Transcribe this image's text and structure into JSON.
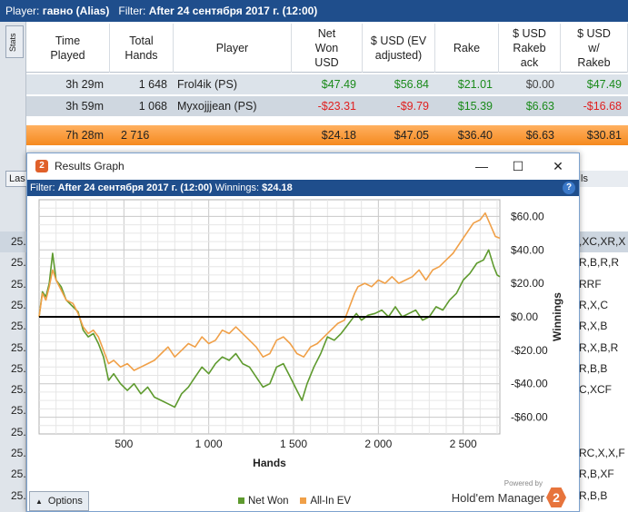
{
  "report": {
    "player_label": "Player:",
    "player_name": "гавно (Alias)",
    "filter_label": "Filter:",
    "filter_value": "After 24 сентября 2017 г. (12:00)",
    "stats_tab": "Stats",
    "las_tab": "Las",
    "right_header": "ls",
    "columns": [
      "Time\nPlayed",
      "Total\nHands",
      "Player",
      "Net\nWon\nUSD",
      "$ USD (EV\nadjusted)",
      "Rake",
      "$ USD\nRakeb\nack",
      "$ USD\nw/\nRakeb"
    ],
    "rows": [
      {
        "time": "3h 29m",
        "hands": "1 648",
        "player": "Frol4ik (PS)",
        "net": "$47.49",
        "ev": "$56.84",
        "rake": "$21.01",
        "rakeback": "$0.00",
        "with_rb": "$47.49",
        "net_color": "#1a8a1a",
        "ev_color": "#1a8a1a",
        "wrb_color": "#1a8a1a"
      },
      {
        "time": "3h 59m",
        "hands": "1 068",
        "player": "Myxojjjean (PS)",
        "net": "-$23.31",
        "ev": "-$9.79",
        "rake": "$15.39",
        "rakeback": "$6.63",
        "with_rb": "-$16.68",
        "net_color": "#e02020",
        "ev_color": "#e02020",
        "wrb_color": "#e02020"
      }
    ],
    "total": {
      "time": "7h 28m",
      "hands": "2 716",
      "net": "$24.18",
      "ev": "$47.05",
      "rake": "$36.40",
      "rakeback": "$6.63",
      "with_rb": "$30.81"
    },
    "side_rows": [
      "25.",
      "25.",
      "25.",
      "25.",
      "25.",
      "25.",
      "25.",
      "25.",
      "25.",
      "25.",
      "25.",
      "25.",
      "25."
    ],
    "right_rows": [
      ",XC,XR,X",
      "R,B,R,R",
      "RRF",
      "R,X,C",
      "R,X,B",
      "R,X,B,R",
      "R,B,B",
      "C,XCF",
      "",
      "",
      "RC,X,X,F",
      "R,B,XF",
      "R,B,B"
    ]
  },
  "graph_window": {
    "title": "Results Graph",
    "filter_label": "Filter:",
    "filter_value": "After 24 сентября 2017 г. (12:00)",
    "winnings_label": "Winnings:",
    "winnings_value": "$24.18",
    "options_label": "Options",
    "powered_by": "Powered by",
    "brand": "Hold'em Manager",
    "logo_glyph": "2"
  },
  "chart_data": {
    "type": "line",
    "xlabel": "Hands",
    "ylabel": "Winnings",
    "xlim": [
      0,
      2716
    ],
    "ylim": [
      -70,
      70
    ],
    "x_ticks": [
      500,
      1000,
      1500,
      2000,
      2500
    ],
    "x_tick_labels": [
      "500",
      "1 000",
      "1 500",
      "2 000",
      "2 500"
    ],
    "y_ticks": [
      60,
      40,
      20,
      0,
      -20,
      -40,
      -60
    ],
    "y_tick_labels": [
      "$60.00",
      "$40.00",
      "$20.00",
      "$0.00",
      "-$20.00",
      "-$40.00",
      "-$60.00"
    ],
    "grid": true,
    "legend_position": "bottom",
    "series": [
      {
        "name": "Net Won",
        "color": "#5e9a2e",
        "points": [
          [
            0,
            0
          ],
          [
            20,
            15
          ],
          [
            40,
            12
          ],
          [
            60,
            20
          ],
          [
            80,
            38
          ],
          [
            100,
            22
          ],
          [
            130,
            18
          ],
          [
            160,
            10
          ],
          [
            200,
            6
          ],
          [
            230,
            3
          ],
          [
            260,
            -8
          ],
          [
            290,
            -12
          ],
          [
            320,
            -10
          ],
          [
            350,
            -16
          ],
          [
            380,
            -24
          ],
          [
            410,
            -38
          ],
          [
            440,
            -34
          ],
          [
            480,
            -40
          ],
          [
            520,
            -44
          ],
          [
            560,
            -40
          ],
          [
            600,
            -46
          ],
          [
            640,
            -42
          ],
          [
            680,
            -48
          ],
          [
            720,
            -50
          ],
          [
            760,
            -52
          ],
          [
            800,
            -54
          ],
          [
            840,
            -46
          ],
          [
            880,
            -42
          ],
          [
            920,
            -36
          ],
          [
            960,
            -30
          ],
          [
            1000,
            -34
          ],
          [
            1040,
            -28
          ],
          [
            1080,
            -24
          ],
          [
            1120,
            -26
          ],
          [
            1160,
            -22
          ],
          [
            1200,
            -28
          ],
          [
            1240,
            -30
          ],
          [
            1280,
            -36
          ],
          [
            1320,
            -42
          ],
          [
            1360,
            -40
          ],
          [
            1400,
            -30
          ],
          [
            1440,
            -28
          ],
          [
            1480,
            -36
          ],
          [
            1520,
            -44
          ],
          [
            1550,
            -50
          ],
          [
            1580,
            -40
          ],
          [
            1620,
            -30
          ],
          [
            1660,
            -22
          ],
          [
            1700,
            -12
          ],
          [
            1740,
            -14
          ],
          [
            1780,
            -10
          ],
          [
            1810,
            -6
          ],
          [
            1840,
            -2
          ],
          [
            1870,
            2
          ],
          [
            1900,
            -2
          ],
          [
            1940,
            1
          ],
          [
            1980,
            2
          ],
          [
            2020,
            4
          ],
          [
            2060,
            0
          ],
          [
            2100,
            6
          ],
          [
            2140,
            0
          ],
          [
            2180,
            2
          ],
          [
            2220,
            4
          ],
          [
            2260,
            -2
          ],
          [
            2300,
            0
          ],
          [
            2340,
            6
          ],
          [
            2380,
            4
          ],
          [
            2420,
            10
          ],
          [
            2460,
            14
          ],
          [
            2500,
            22
          ],
          [
            2540,
            26
          ],
          [
            2580,
            32
          ],
          [
            2620,
            34
          ],
          [
            2650,
            40
          ],
          [
            2680,
            30
          ],
          [
            2700,
            25
          ],
          [
            2716,
            24
          ]
        ]
      },
      {
        "name": "All-In EV",
        "color": "#f0a048",
        "points": [
          [
            0,
            0
          ],
          [
            20,
            14
          ],
          [
            40,
            10
          ],
          [
            60,
            18
          ],
          [
            80,
            28
          ],
          [
            100,
            22
          ],
          [
            130,
            16
          ],
          [
            160,
            10
          ],
          [
            200,
            8
          ],
          [
            230,
            2
          ],
          [
            260,
            -6
          ],
          [
            290,
            -10
          ],
          [
            320,
            -8
          ],
          [
            350,
            -12
          ],
          [
            380,
            -20
          ],
          [
            410,
            -28
          ],
          [
            440,
            -26
          ],
          [
            480,
            -30
          ],
          [
            520,
            -28
          ],
          [
            560,
            -32
          ],
          [
            600,
            -30
          ],
          [
            640,
            -28
          ],
          [
            680,
            -26
          ],
          [
            720,
            -22
          ],
          [
            760,
            -18
          ],
          [
            800,
            -24
          ],
          [
            840,
            -20
          ],
          [
            880,
            -16
          ],
          [
            920,
            -18
          ],
          [
            960,
            -12
          ],
          [
            1000,
            -16
          ],
          [
            1040,
            -14
          ],
          [
            1080,
            -8
          ],
          [
            1120,
            -10
          ],
          [
            1160,
            -6
          ],
          [
            1200,
            -10
          ],
          [
            1240,
            -14
          ],
          [
            1280,
            -18
          ],
          [
            1320,
            -24
          ],
          [
            1360,
            -22
          ],
          [
            1400,
            -14
          ],
          [
            1440,
            -12
          ],
          [
            1480,
            -16
          ],
          [
            1520,
            -22
          ],
          [
            1560,
            -24
          ],
          [
            1600,
            -18
          ],
          [
            1640,
            -16
          ],
          [
            1680,
            -12
          ],
          [
            1720,
            -8
          ],
          [
            1760,
            -4
          ],
          [
            1800,
            -2
          ],
          [
            1830,
            6
          ],
          [
            1860,
            14
          ],
          [
            1880,
            18
          ],
          [
            1920,
            20
          ],
          [
            1960,
            18
          ],
          [
            2000,
            22
          ],
          [
            2040,
            20
          ],
          [
            2080,
            24
          ],
          [
            2120,
            20
          ],
          [
            2160,
            22
          ],
          [
            2200,
            24
          ],
          [
            2240,
            28
          ],
          [
            2280,
            22
          ],
          [
            2320,
            28
          ],
          [
            2360,
            30
          ],
          [
            2400,
            34
          ],
          [
            2440,
            38
          ],
          [
            2480,
            44
          ],
          [
            2520,
            50
          ],
          [
            2560,
            56
          ],
          [
            2600,
            58
          ],
          [
            2630,
            62
          ],
          [
            2660,
            55
          ],
          [
            2690,
            48
          ],
          [
            2716,
            47
          ]
        ]
      }
    ]
  }
}
